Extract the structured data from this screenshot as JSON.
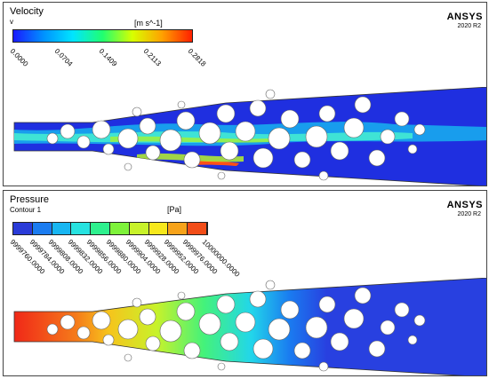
{
  "velocity": {
    "title": "Velocity",
    "variable": "v",
    "unit": "[m s^-1]",
    "ticks": [
      "0.0000",
      "0.0704",
      "0.1409",
      "0.2113",
      "0.2818"
    ],
    "colormap": [
      "#1a1aff",
      "#0090ff",
      "#00e5ff",
      "#20ff70",
      "#d8ff00",
      "#ffa000",
      "#ff2000"
    ]
  },
  "pressure": {
    "title": "Pressure",
    "contour": "Contour 1",
    "unit": "[Pa]",
    "ticks": [
      "9999760.0000",
      "9999784.0000",
      "9999808.0000",
      "9999832.0000",
      "9999856.0000",
      "9999880.0000",
      "9999904.0000",
      "9999928.0000",
      "9999952.0000",
      "9999976.0000",
      "10000000.0000"
    ],
    "bands": [
      "#2a3bd8",
      "#1b7cf0",
      "#18b6f2",
      "#27e2e0",
      "#2ef08e",
      "#7ef23a",
      "#c8f22a",
      "#f6e81c",
      "#f7a31a",
      "#f24d18"
    ]
  },
  "brand": {
    "name": "ANSYS",
    "version": "2020 R2"
  },
  "colors": {
    "velocity_bg": "#1f2fe0",
    "pressure_bg": "#2840e0",
    "inlet_red": "#f02818"
  }
}
